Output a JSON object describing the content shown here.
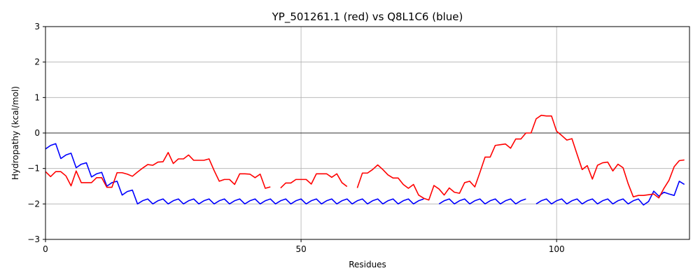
{
  "chart_data": {
    "type": "line",
    "title": "YP_501261.1 (red) vs Q8L1C6 (blue)",
    "xlabel": "Residues",
    "ylabel": "Hydropathy (kcal/mol)",
    "xlim": [
      0,
      126
    ],
    "ylim": [
      -3,
      3
    ],
    "xticks": [
      0,
      50,
      100
    ],
    "yticks": [
      -3,
      -2,
      -1,
      0,
      1,
      2,
      3
    ],
    "grid": true,
    "zero_line": true,
    "colors": {
      "red": "#ff0000",
      "blue": "#0000ff"
    },
    "series": [
      {
        "color": "#0000ff",
        "segments": [
          {
            "start": 0,
            "values": [
              -0.45,
              -0.35,
              -0.3,
              -0.72,
              -0.62,
              -0.57,
              -0.98,
              -0.88,
              -0.84,
              -1.24,
              -1.15,
              -1.11,
              -1.5,
              -1.4,
              -1.36,
              -1.75,
              -1.65,
              -1.61,
              -2.0,
              -1.91,
              -1.86,
              -2.0,
              -1.91,
              -1.86,
              -2.0,
              -1.91,
              -1.86,
              -2.0,
              -1.91,
              -1.86,
              -2.0,
              -1.91,
              -1.86,
              -2.0,
              -1.91,
              -1.86,
              -2.0,
              -1.91,
              -1.86,
              -2.0,
              -1.91,
              -1.86,
              -2.0,
              -1.91,
              -1.86,
              -2.0,
              -1.91,
              -1.86,
              -2.0,
              -1.91,
              -1.86,
              -2.0,
              -1.91,
              -1.86,
              -2.0,
              -1.91,
              -1.86,
              -2.0,
              -1.91,
              -1.86,
              -2.0,
              -1.91,
              -1.86,
              -2.0,
              -1.91,
              -1.86,
              -2.0,
              -1.91,
              -1.86,
              -2.0,
              -1.91,
              -1.86,
              -2.0,
              -1.91,
              -1.86
            ]
          },
          {
            "start": 77,
            "values": [
              -2.0,
              -1.91,
              -1.86,
              -2.0,
              -1.91,
              -1.86,
              -2.0,
              -1.91,
              -1.86,
              -2.0,
              -1.91,
              -1.86,
              -2.0,
              -1.91,
              -1.86,
              -2.0,
              -1.91,
              -1.86
            ]
          },
          {
            "start": 96,
            "values": [
              -2.0,
              -1.91,
              -1.86,
              -2.0,
              -1.91,
              -1.86,
              -2.0,
              -1.91,
              -1.86,
              -2.0,
              -1.91,
              -1.86,
              -2.0,
              -1.91,
              -1.86,
              -2.0,
              -1.91,
              -1.86,
              -2.0,
              -1.91,
              -1.86,
              -2.03,
              -1.93,
              -1.64,
              -1.78,
              -1.67,
              -1.72,
              -1.76,
              -1.36,
              -1.45
            ]
          }
        ]
      },
      {
        "color": "#ff0000",
        "segments": [
          {
            "start": 0,
            "values": [
              -1.09,
              -1.23,
              -1.09,
              -1.09,
              -1.21,
              -1.49,
              -1.07,
              -1.4,
              -1.4,
              -1.4,
              -1.26,
              -1.26,
              -1.53,
              -1.53,
              -1.12,
              -1.12,
              -1.16,
              -1.22,
              -1.1,
              -0.99,
              -0.89,
              -0.91,
              -0.82,
              -0.81,
              -0.55,
              -0.86,
              -0.73,
              -0.73,
              -0.62,
              -0.77,
              -0.77,
              -0.77,
              -0.73,
              -1.06,
              -1.36,
              -1.31,
              -1.31,
              -1.45,
              -1.15,
              -1.15,
              -1.16,
              -1.26,
              -1.16,
              -1.56,
              -1.52
            ]
          },
          {
            "start": 46,
            "values": [
              -1.55,
              -1.41,
              -1.41,
              -1.31,
              -1.31,
              -1.31,
              -1.44,
              -1.15,
              -1.15,
              -1.15,
              -1.25,
              -1.15,
              -1.4,
              -1.51
            ]
          },
          {
            "start": 61,
            "values": [
              -1.55,
              -1.13,
              -1.13,
              -1.03,
              -0.9,
              -1.03,
              -1.18,
              -1.27,
              -1.27,
              -1.45,
              -1.56,
              -1.45,
              -1.75,
              -1.84,
              -1.89,
              -1.48,
              -1.58,
              -1.75,
              -1.55,
              -1.67,
              -1.7,
              -1.4,
              -1.36,
              -1.52,
              -1.11,
              -0.68,
              -0.68,
              -0.35,
              -0.33,
              -0.31,
              -0.43,
              -0.17,
              -0.17,
              0.0,
              0.0,
              0.4,
              0.5,
              0.48,
              0.48,
              0.05,
              -0.07,
              -0.2,
              -0.16,
              -0.6,
              -1.03,
              -0.92,
              -1.3,
              -0.91,
              -0.84,
              -0.82,
              -1.07,
              -0.88,
              -0.98,
              -1.43,
              -1.8,
              -1.76,
              -1.76,
              -1.74,
              -1.72,
              -1.83,
              -1.56,
              -1.33,
              -0.95,
              -0.78,
              -0.76
            ]
          }
        ]
      }
    ]
  }
}
